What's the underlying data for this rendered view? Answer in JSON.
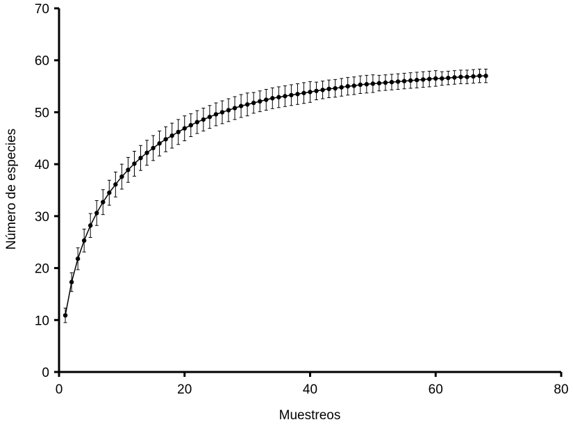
{
  "chart_data": {
    "type": "line",
    "xlabel": "Muestreos",
    "ylabel": "Número de especies",
    "x": [
      1,
      2,
      3,
      4,
      5,
      6,
      7,
      8,
      9,
      10,
      11,
      12,
      13,
      14,
      15,
      16,
      17,
      18,
      19,
      20,
      21,
      22,
      23,
      24,
      25,
      26,
      27,
      28,
      29,
      30,
      31,
      32,
      33,
      34,
      35,
      36,
      37,
      38,
      39,
      40,
      41,
      42,
      43,
      44,
      45,
      46,
      47,
      48,
      49,
      50,
      51,
      52,
      53,
      54,
      55,
      56,
      57,
      58,
      59,
      60,
      61,
      62,
      63,
      64,
      65,
      66,
      67,
      68
    ],
    "series": [
      {
        "color": "#000000",
        "values": [
          10.9,
          17.3,
          21.8,
          25.3,
          28.2,
          30.6,
          32.7,
          34.5,
          36.1,
          37.6,
          38.9,
          40.1,
          41.2,
          42.2,
          43.1,
          44.0,
          44.8,
          45.5,
          46.2,
          46.9,
          47.5,
          48.1,
          48.6,
          49.1,
          49.6,
          50.0,
          50.4,
          50.8,
          51.2,
          51.5,
          51.8,
          52.1,
          52.4,
          52.7,
          52.9,
          53.1,
          53.3,
          53.5,
          53.7,
          53.9,
          54.1,
          54.3,
          54.5,
          54.6,
          54.8,
          55.0,
          55.1,
          55.3,
          55.4,
          55.5,
          55.6,
          55.7,
          55.8,
          55.9,
          56.0,
          56.1,
          56.2,
          56.3,
          56.4,
          56.5,
          56.5,
          56.6,
          56.7,
          56.8,
          56.8,
          56.9,
          57.0,
          57.0
        ],
        "errors": [
          1.4,
          1.8,
          2.1,
          2.2,
          2.3,
          2.4,
          2.4,
          2.4,
          2.4,
          2.4,
          2.4,
          2.4,
          2.4,
          2.4,
          2.4,
          2.4,
          2.4,
          2.4,
          2.4,
          2.4,
          2.2,
          2.2,
          2.2,
          2.2,
          2.2,
          2.2,
          2.2,
          2.2,
          2.2,
          2.2,
          2.0,
          2.0,
          2.0,
          2.0,
          2.0,
          2.0,
          2.0,
          2.0,
          2.0,
          2.0,
          1.7,
          1.7,
          1.7,
          1.7,
          1.7,
          1.7,
          1.7,
          1.7,
          1.7,
          1.7,
          1.5,
          1.5,
          1.5,
          1.5,
          1.5,
          1.5,
          1.5,
          1.5,
          1.5,
          1.5,
          1.3,
          1.3,
          1.3,
          1.3,
          1.3,
          1.3,
          1.3,
          1.3
        ]
      }
    ],
    "xlim": [
      0,
      80
    ],
    "xticks": [
      0,
      20,
      40,
      60,
      80
    ],
    "ylim": [
      0,
      70
    ],
    "yticks": [
      0,
      10,
      20,
      30,
      40,
      50,
      60,
      70
    ]
  }
}
